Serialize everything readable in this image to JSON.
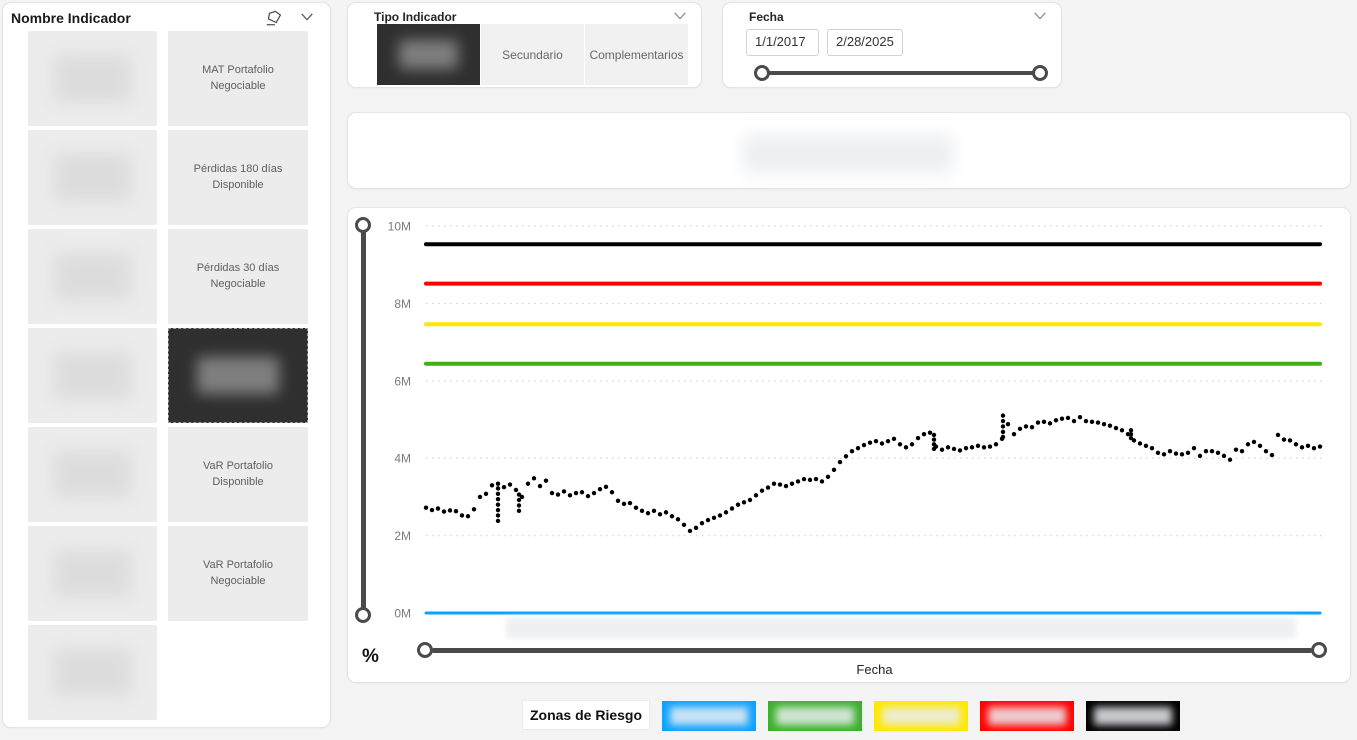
{
  "left_panel": {
    "title": "Nombre Indicador",
    "eraser_icon": "eraser-clear-selections",
    "chevron_icon": "chevron-down",
    "rows": [
      {
        "left_redacted": true,
        "label": "MAT Portafolio Negociable",
        "selected": false
      },
      {
        "left_redacted": true,
        "label": "Pérdidas 180 días Disponible",
        "selected": false
      },
      {
        "left_redacted": true,
        "label": "Pérdidas 30 días Negociable",
        "selected": false
      },
      {
        "left_redacted": true,
        "label": "",
        "selected": true,
        "right_redacted": true
      },
      {
        "left_redacted": true,
        "label": "VaR Portafolio Disponible",
        "selected": false
      },
      {
        "left_redacted": true,
        "label": "VaR Portafolio Negociable",
        "selected": false
      },
      {
        "left_redacted": true,
        "label": null,
        "selected": false
      }
    ]
  },
  "tipo_indicador": {
    "title": "Tipo Indicador",
    "options": [
      {
        "label": "",
        "selected": true,
        "redacted": true
      },
      {
        "label": "Secundario",
        "selected": false
      },
      {
        "label": "Complementarios",
        "selected": false
      }
    ]
  },
  "fecha_slicer": {
    "title": "Fecha",
    "start_date": "1/1/2017",
    "end_date": "2/28/2025"
  },
  "title_card": {
    "redacted": true
  },
  "chart_data": {
    "type": "scatter",
    "title_redacted": true,
    "x_axis_title": "Fecha",
    "y_axis_unit": "%",
    "x_axis_labels_redacted": true,
    "ylim": [
      0,
      10
    ],
    "y_ticks": [
      {
        "label": "0M",
        "value": 0
      },
      {
        "label": "2M",
        "value": 2
      },
      {
        "label": "4M",
        "value": 4
      },
      {
        "label": "6M",
        "value": 6
      },
      {
        "label": "8M",
        "value": 8
      },
      {
        "label": "10M",
        "value": 10
      }
    ],
    "grid": "dotted-horizontal",
    "thresholds": [
      {
        "name": "zona-negra",
        "color": "#000000",
        "value": 9.53,
        "width": 4
      },
      {
        "name": "zona-roja",
        "color": "#FF0000",
        "value": 8.51,
        "width": 4
      },
      {
        "name": "zona-amarilla",
        "color": "#FFE800",
        "value": 7.46,
        "width": 4
      },
      {
        "name": "zona-verde",
        "color": "#3FB10E",
        "value": 6.44,
        "width": 4
      },
      {
        "name": "zona-azul",
        "color": "#0DA2FF",
        "value": 0.0,
        "width": 3
      }
    ],
    "series": {
      "name": "indicador",
      "color": "#000000",
      "point_radius": 2.2,
      "x_unit": "px (fechas redactadas)",
      "y_unit": "M",
      "points": [
        [
          425,
          2.72
        ],
        [
          431,
          2.66
        ],
        [
          437,
          2.7
        ],
        [
          443,
          2.62
        ],
        [
          449,
          2.65
        ],
        [
          455,
          2.63
        ],
        [
          461,
          2.52
        ],
        [
          467,
          2.5
        ],
        [
          473,
          2.68
        ],
        [
          479,
          3.0
        ],
        [
          485,
          3.08
        ],
        [
          491,
          3.3
        ],
        [
          497,
          3.34
        ],
        [
          503,
          3.25
        ],
        [
          509,
          3.32
        ],
        [
          515,
          3.18
        ],
        [
          521,
          3.0
        ],
        [
          527,
          3.34
        ],
        [
          533,
          3.48
        ],
        [
          539,
          3.28
        ],
        [
          545,
          3.42
        ],
        [
          551,
          3.1
        ],
        [
          557,
          3.06
        ],
        [
          563,
          3.14
        ],
        [
          569,
          3.04
        ],
        [
          575,
          3.1
        ],
        [
          581,
          3.12
        ],
        [
          587,
          3.02
        ],
        [
          593,
          3.1
        ],
        [
          599,
          3.2
        ],
        [
          605,
          3.26
        ],
        [
          611,
          3.12
        ],
        [
          617,
          2.9
        ],
        [
          623,
          2.82
        ],
        [
          629,
          2.84
        ],
        [
          635,
          2.72
        ],
        [
          641,
          2.64
        ],
        [
          647,
          2.58
        ],
        [
          653,
          2.64
        ],
        [
          659,
          2.55
        ],
        [
          665,
          2.6
        ],
        [
          671,
          2.5
        ],
        [
          677,
          2.42
        ],
        [
          683,
          2.28
        ],
        [
          689,
          2.12
        ],
        [
          695,
          2.2
        ],
        [
          701,
          2.32
        ],
        [
          707,
          2.4
        ],
        [
          713,
          2.46
        ],
        [
          719,
          2.52
        ],
        [
          725,
          2.6
        ],
        [
          731,
          2.7
        ],
        [
          737,
          2.8
        ],
        [
          743,
          2.86
        ],
        [
          749,
          2.92
        ],
        [
          755,
          3.04
        ],
        [
          761,
          3.16
        ],
        [
          767,
          3.24
        ],
        [
          773,
          3.34
        ],
        [
          779,
          3.32
        ],
        [
          785,
          3.28
        ],
        [
          791,
          3.34
        ],
        [
          797,
          3.4
        ],
        [
          803,
          3.46
        ],
        [
          809,
          3.44
        ],
        [
          815,
          3.46
        ],
        [
          821,
          3.4
        ],
        [
          827,
          3.52
        ],
        [
          833,
          3.7
        ],
        [
          839,
          3.9
        ],
        [
          845,
          4.05
        ],
        [
          851,
          4.18
        ],
        [
          857,
          4.26
        ],
        [
          863,
          4.34
        ],
        [
          869,
          4.4
        ],
        [
          875,
          4.44
        ],
        [
          881,
          4.38
        ],
        [
          887,
          4.44
        ],
        [
          893,
          4.5
        ],
        [
          899,
          4.36
        ],
        [
          905,
          4.28
        ],
        [
          911,
          4.36
        ],
        [
          917,
          4.52
        ],
        [
          923,
          4.62
        ],
        [
          929,
          4.66
        ],
        [
          935,
          4.3
        ],
        [
          941,
          4.22
        ],
        [
          947,
          4.28
        ],
        [
          953,
          4.24
        ],
        [
          959,
          4.2
        ],
        [
          965,
          4.26
        ],
        [
          971,
          4.28
        ],
        [
          977,
          4.32
        ],
        [
          983,
          4.28
        ],
        [
          989,
          4.3
        ],
        [
          995,
          4.36
        ],
        [
          1001,
          4.5
        ],
        [
          1007,
          4.88
        ],
        [
          1013,
          4.62
        ],
        [
          1019,
          4.76
        ],
        [
          1025,
          4.82
        ],
        [
          1031,
          4.8
        ],
        [
          1037,
          4.92
        ],
        [
          1043,
          4.94
        ],
        [
          1049,
          4.9
        ],
        [
          1055,
          4.98
        ],
        [
          1061,
          5.02
        ],
        [
          1067,
          5.04
        ],
        [
          1073,
          4.96
        ],
        [
          1079,
          5.06
        ],
        [
          1085,
          4.96
        ],
        [
          1091,
          4.94
        ],
        [
          1097,
          4.92
        ],
        [
          1103,
          4.88
        ],
        [
          1109,
          4.84
        ],
        [
          1115,
          4.78
        ],
        [
          1121,
          4.72
        ],
        [
          1127,
          4.62
        ],
        [
          1133,
          4.46
        ],
        [
          1139,
          4.38
        ],
        [
          1145,
          4.32
        ],
        [
          1151,
          4.26
        ],
        [
          1157,
          4.14
        ],
        [
          1163,
          4.1
        ],
        [
          1169,
          4.18
        ],
        [
          1175,
          4.12
        ],
        [
          1181,
          4.1
        ],
        [
          1187,
          4.14
        ],
        [
          1193,
          4.26
        ],
        [
          1199,
          4.06
        ],
        [
          1205,
          4.18
        ],
        [
          1211,
          4.18
        ],
        [
          1217,
          4.14
        ],
        [
          1223,
          4.06
        ],
        [
          1229,
          3.96
        ],
        [
          1235,
          4.22
        ],
        [
          1241,
          4.18
        ],
        [
          1247,
          4.36
        ],
        [
          1253,
          4.42
        ],
        [
          1259,
          4.32
        ],
        [
          1265,
          4.18
        ],
        [
          1271,
          4.08
        ],
        [
          1277,
          4.6
        ],
        [
          1283,
          4.48
        ],
        [
          1289,
          4.46
        ],
        [
          1295,
          4.36
        ],
        [
          1301,
          4.28
        ],
        [
          1307,
          4.32
        ],
        [
          1313,
          4.26
        ],
        [
          1319,
          4.3
        ],
        [
          497,
          2.38
        ],
        [
          497,
          2.52
        ],
        [
          497,
          2.66
        ],
        [
          497,
          2.8
        ],
        [
          497,
          2.94
        ],
        [
          497,
          3.08
        ],
        [
          497,
          3.22
        ],
        [
          518,
          2.64
        ],
        [
          518,
          2.78
        ],
        [
          518,
          2.92
        ],
        [
          518,
          3.06
        ],
        [
          933,
          4.24
        ],
        [
          933,
          4.36
        ],
        [
          933,
          4.48
        ],
        [
          933,
          4.6
        ],
        [
          1002,
          4.55
        ],
        [
          1002,
          4.68
        ],
        [
          1002,
          4.82
        ],
        [
          1002,
          4.96
        ],
        [
          1002,
          5.1
        ],
        [
          1130,
          4.52
        ],
        [
          1130,
          4.62
        ],
        [
          1130,
          4.72
        ]
      ]
    }
  },
  "legend": {
    "label": "Zonas de Riesgo",
    "zones": [
      {
        "name": "zona-azul",
        "color": "#0DA2FF",
        "label_redacted": true
      },
      {
        "name": "zona-verde",
        "color": "#3CB02C",
        "label_redacted": true
      },
      {
        "name": "zona-amarilla",
        "color": "#FFE800",
        "label_redacted": true
      },
      {
        "name": "zona-roja",
        "color": "#FF0000",
        "label_redacted": true
      },
      {
        "name": "zona-negra",
        "color": "#000000",
        "label_redacted": true
      }
    ]
  }
}
